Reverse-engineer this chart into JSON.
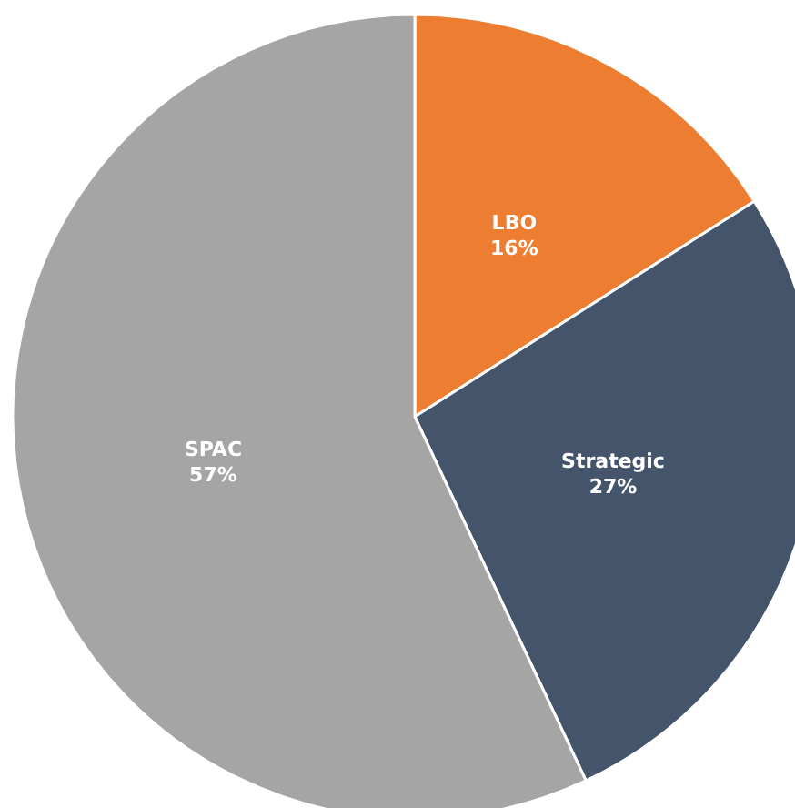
{
  "chart_data": {
    "type": "pie",
    "categories": [
      "LBO",
      "Strategic",
      "SPAC"
    ],
    "values": [
      16,
      27,
      57
    ],
    "colors": [
      "#ed7d31",
      "#44546a",
      "#a5a5a5"
    ],
    "value_labels": [
      "16%",
      "27%",
      "57%"
    ]
  }
}
